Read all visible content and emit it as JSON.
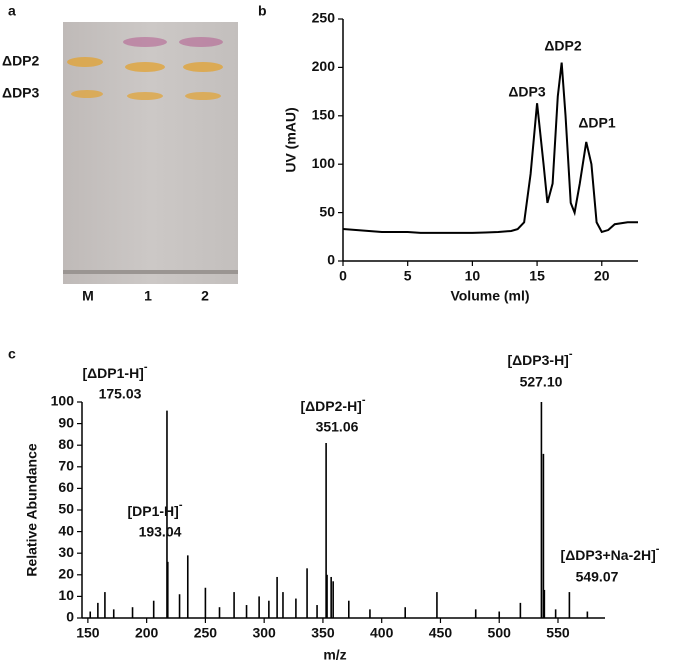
{
  "panel_labels": [
    "a",
    "b",
    "c"
  ],
  "tlc": {
    "bands": [
      "ΔDP2",
      "ΔDP3"
    ],
    "lanes": [
      "M",
      "1",
      "2"
    ]
  },
  "chart_data": [
    {
      "type": "line",
      "x_label": "Volume (ml)",
      "y_label": "UV (mAU)",
      "x": [
        0,
        1,
        2,
        3,
        4,
        5,
        6,
        7,
        8,
        9,
        10,
        11,
        12,
        13,
        13.5,
        14,
        14.5,
        15,
        15.5,
        15.8,
        16.2,
        16.6,
        16.9,
        17.2,
        17.6,
        17.9,
        18.3,
        18.8,
        19.2,
        19.6,
        20,
        20.5,
        21,
        22,
        22.8
      ],
      "series": [
        {
          "color": "#000000",
          "values": [
            33,
            32,
            31,
            30,
            30,
            30,
            29,
            29,
            29,
            29,
            29,
            29.5,
            30,
            31,
            33,
            40,
            90,
            163,
            100,
            60,
            80,
            170,
            205,
            150,
            60,
            50,
            80,
            123,
            100,
            40,
            30,
            32,
            38,
            40,
            40
          ]
        }
      ],
      "peak_labels": [
        "ΔDP3",
        "ΔDP2",
        "ΔDP1"
      ],
      "xlim": [
        0,
        22.8
      ],
      "xticks": [
        0,
        5,
        10,
        15,
        20
      ],
      "ylim": [
        0,
        250
      ],
      "yticks": [
        0,
        50,
        100,
        150,
        200,
        250
      ]
    },
    {
      "type": "stem",
      "x_label": "m/z",
      "y_label": "Relative Abundance",
      "x": [
        152,
        158.5,
        164.5,
        172,
        188,
        206,
        217.3,
        218,
        228,
        235,
        250,
        262,
        274.4,
        285,
        295.7,
        304,
        311,
        316,
        327,
        336.5,
        345,
        352.7,
        353.5,
        357,
        358.7,
        372,
        390,
        420,
        447,
        480,
        500,
        518,
        535.9,
        537.6,
        538.4,
        548,
        559.7,
        575
      ],
      "values": [
        3,
        7,
        12,
        4,
        5,
        8,
        96,
        26,
        11,
        29,
        14,
        5,
        12,
        6,
        10,
        8,
        19,
        12,
        9,
        23,
        6,
        81,
        20,
        19,
        17,
        8,
        4,
        5,
        12,
        4,
        3,
        7,
        100,
        76,
        13,
        4,
        12,
        3
      ],
      "color": "#000000",
      "annotations": [
        {
          "ion": "[ΔDP1-H]",
          "charge": "-",
          "mz": "175.03"
        },
        {
          "ion": "[DP1-H]",
          "charge": "-",
          "mz": "193.04"
        },
        {
          "ion": "[ΔDP2-H]",
          "charge": "-",
          "mz": "351.06"
        },
        {
          "ion": "[ΔDP3-H]",
          "charge": "-",
          "mz": "527.10"
        },
        {
          "ion": "[ΔDP3+Na-2H]",
          "charge": "-",
          "mz": "549.07"
        }
      ],
      "xlim": [
        145,
        590
      ],
      "xticks": [
        150,
        200,
        250,
        300,
        350,
        400,
        450,
        500,
        550
      ],
      "ylim": [
        0,
        100
      ],
      "yticks": [
        0,
        10,
        20,
        30,
        40,
        50,
        60,
        70,
        80,
        90,
        100
      ]
    }
  ]
}
